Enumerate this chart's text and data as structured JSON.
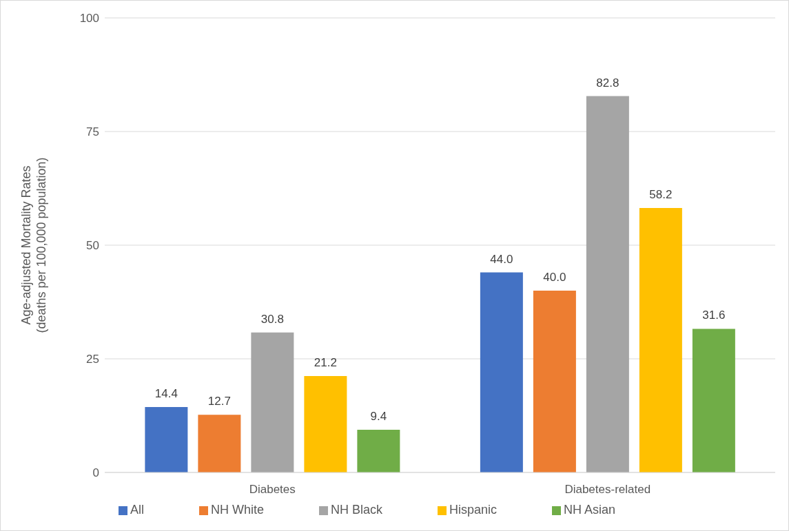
{
  "chart_data": {
    "type": "bar",
    "ylabel": "Age-adjusted Mortality Rates\n(deaths per 100,000 population)",
    "categories": [
      "Diabetes",
      "Diabetes-related"
    ],
    "series": [
      {
        "name": "All",
        "color": "#4472c4",
        "values": [
          14.4,
          44.0
        ],
        "value_labels": [
          "14.4",
          "44.0"
        ]
      },
      {
        "name": "NH White",
        "color": "#ed7d31",
        "values": [
          12.7,
          40.0
        ],
        "value_labels": [
          "12.7",
          "40.0"
        ]
      },
      {
        "name": "NH Black",
        "color": "#a5a5a5",
        "values": [
          30.8,
          82.8
        ],
        "value_labels": [
          "30.8",
          "82.8"
        ]
      },
      {
        "name": "Hispanic",
        "color": "#ffc000",
        "values": [
          21.2,
          58.2
        ],
        "value_labels": [
          "21.2",
          "58.2"
        ]
      },
      {
        "name": "NH Asian",
        "color": "#70ad47",
        "values": [
          9.4,
          31.6
        ],
        "value_labels": [
          "9.4",
          "31.6"
        ]
      }
    ],
    "ylim": [
      0,
      100
    ],
    "yticks": [
      0,
      25,
      50,
      75,
      100
    ],
    "grid": "y",
    "legend": "bottom"
  }
}
